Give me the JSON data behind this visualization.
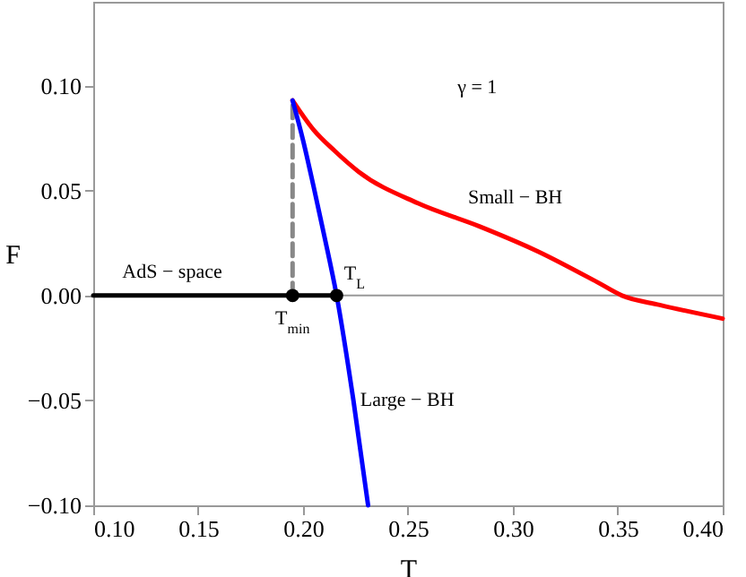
{
  "chart_data": {
    "type": "line",
    "xlabel": "T",
    "ylabel": "F",
    "xlim": [
      0.1,
      0.4
    ],
    "ylim": [
      -0.1,
      0.14
    ],
    "xticks": [
      {
        "value": 0.1,
        "label": "0.10"
      },
      0.15,
      {
        "value": 0.2,
        "label": "0.20"
      },
      0.25,
      {
        "value": 0.3,
        "label": "0.30"
      },
      0.35,
      {
        "value": 0.4,
        "label": "0.40"
      }
    ],
    "yticks": [
      {
        "value": -0.1,
        "label": "−0.10"
      },
      {
        "value": -0.05,
        "label": "−0.05"
      },
      {
        "value": 0,
        "label": "0.00"
      },
      0.05,
      {
        "value": 0.1,
        "label": "0.10"
      }
    ],
    "grid": false,
    "ref_lines": [
      {
        "axis": "y",
        "value": 0,
        "color": "#999999"
      }
    ],
    "series": [
      {
        "type": "line",
        "color": "#888888",
        "line_style": "dashed",
        "x": [
          0.195,
          0.195
        ],
        "values": [
          0,
          0.093
        ]
      },
      {
        "type": "line",
        "name": "Small − BH",
        "color": "#ff0000",
        "x": [
          0.195,
          0.205,
          0.215,
          0.2265,
          0.2547,
          0.284,
          0.312,
          0.34,
          0.352,
          0.37,
          0.4
        ],
        "values": [
          0.093,
          0.079,
          0.069,
          0.059,
          0.044,
          0.033,
          0.021,
          0.0065,
          0,
          -0.0045,
          -0.011
        ]
      },
      {
        "type": "line",
        "name": "Large − BH",
        "color": "#0000ff",
        "x": [
          0.195,
          0.2,
          0.205,
          0.21,
          0.216,
          0.224,
          0.231
        ],
        "values": [
          0.093,
          0.074,
          0.052,
          0.029,
          0,
          -0.05,
          -0.1
        ]
      },
      {
        "type": "line",
        "name": "AdS − space",
        "color": "#000000",
        "x": [
          0.1,
          0.216
        ],
        "values": [
          0,
          0
        ]
      },
      {
        "type": "scatter",
        "color": "#000000",
        "marker": "circle",
        "x": [
          0.195,
          0.216
        ],
        "values": [
          0,
          0
        ]
      }
    ],
    "annotations": [
      "γ = 1",
      {
        "text": "T$_{min}$",
        "x": 0.195,
        "y": 0
      },
      {
        "text": "T$_{L}$",
        "x": 0.216,
        "y": 0
      }
    ]
  }
}
